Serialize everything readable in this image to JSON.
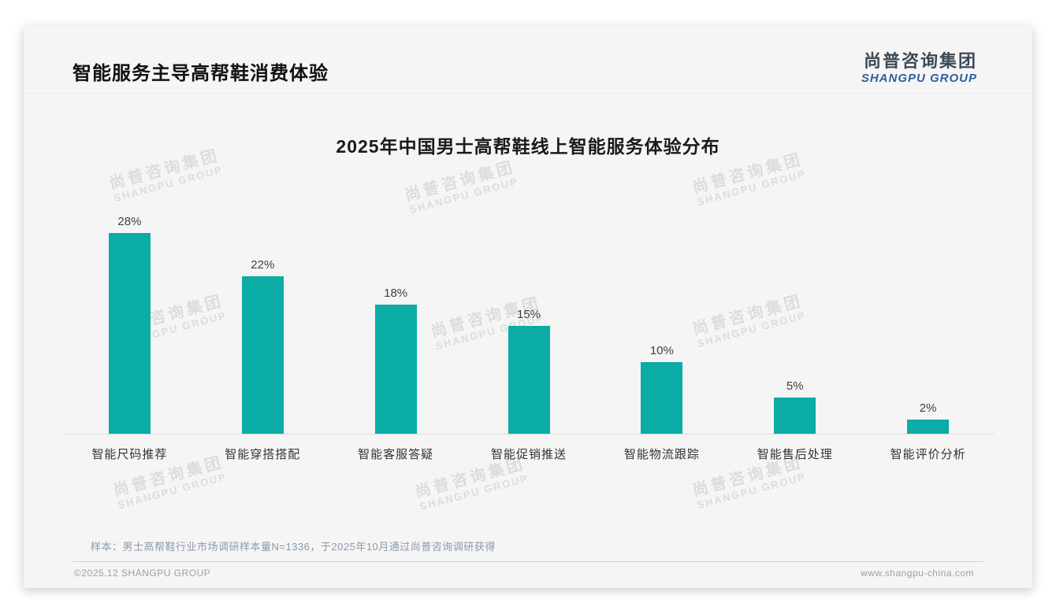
{
  "page": {
    "title": "智能服务主导高帮鞋消费体验",
    "logo": {
      "cn": "尚普咨询集团",
      "en": "SHANGPU GROUP"
    },
    "note": "样本：男士高帮鞋行业市场调研样本量N=1336，于2025年10月通过尚普咨询调研获得",
    "footer": {
      "left": "©2025.12 SHANGPU GROUP",
      "right": "www.shangpu-china.com"
    },
    "watermark": {
      "cn": "尚普咨询集团",
      "en": "SHANGPU GROUP"
    }
  },
  "colors": {
    "bar": "#0baca6",
    "logo_cn": "#3d4a57",
    "logo_en": "#2e5f9e",
    "note_text": "#8c9aab",
    "footer_text": "#9aa0a6",
    "watermark": "#dcdcdc",
    "card_bg": "#f5f5f5"
  },
  "chart_data": {
    "type": "bar",
    "title": "2025年中国男士高帮鞋线上智能服务体验分布",
    "categories": [
      "智能尺码推荐",
      "智能穿搭搭配",
      "智能客服答疑",
      "智能促销推送",
      "智能物流跟踪",
      "智能售后处理",
      "智能评价分析"
    ],
    "values": [
      28,
      22,
      18,
      15,
      10,
      5,
      2
    ],
    "value_labels": [
      "28%",
      "22%",
      "18%",
      "15%",
      "10%",
      "5%",
      "2%"
    ],
    "unit": "%",
    "xlabel": "",
    "ylabel": "",
    "ylim": [
      0,
      33
    ],
    "grid": false,
    "legend": false,
    "bar_color": "#0baca6"
  }
}
